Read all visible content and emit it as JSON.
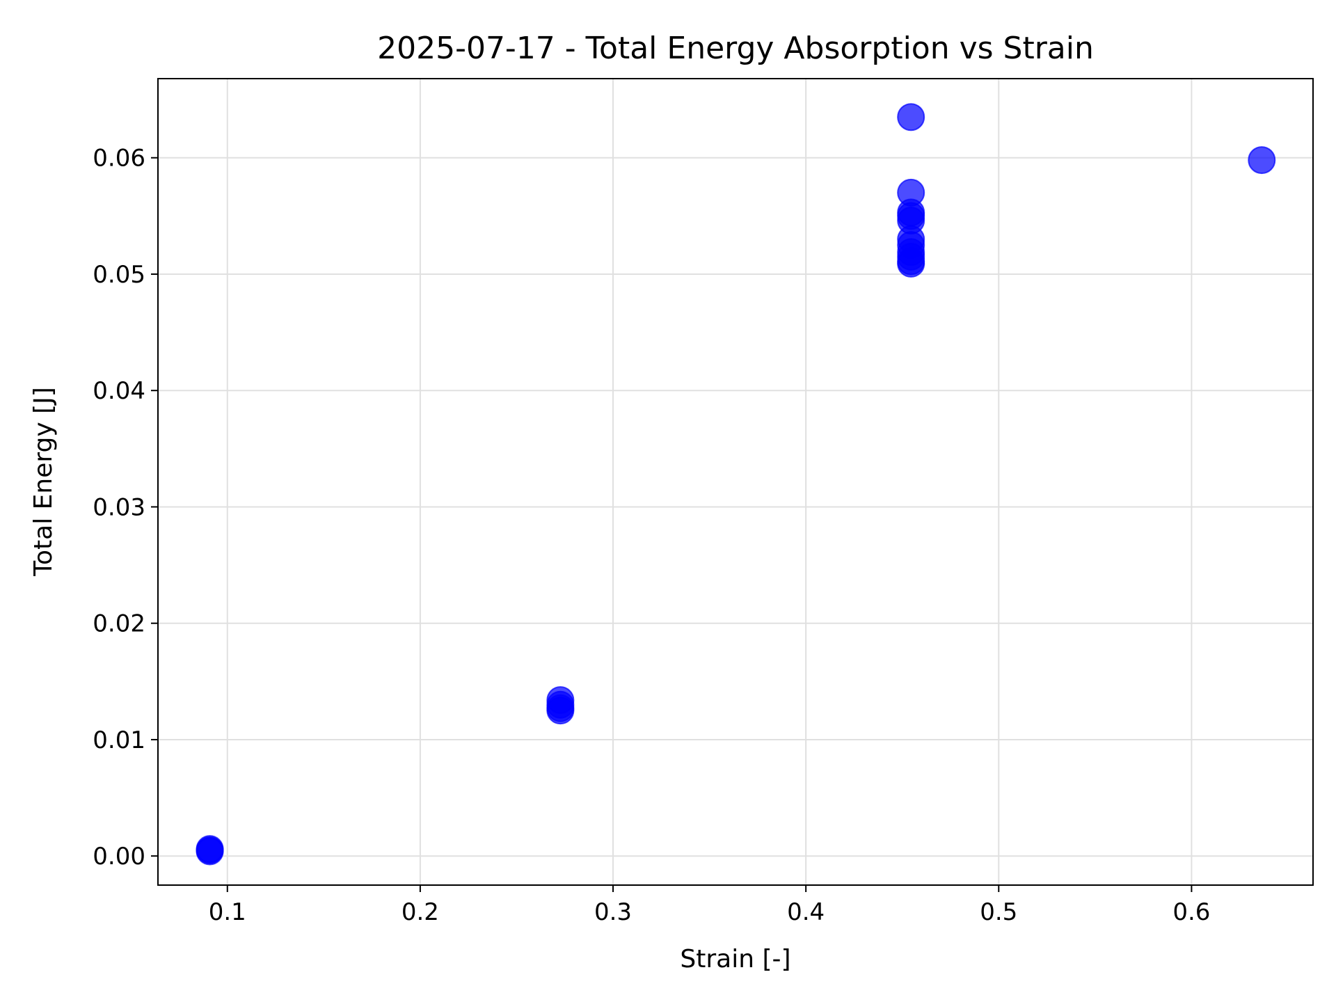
{
  "chart_data": {
    "type": "scatter",
    "title": "2025-07-17 - Total Energy Absorption vs Strain",
    "xlabel": "Strain [-]",
    "ylabel": "Total Energy [J]",
    "xlim": [
      0.064,
      0.663
    ],
    "ylim": [
      -0.0025,
      0.0668
    ],
    "xticks": [
      0.1,
      0.2,
      0.3,
      0.4,
      0.5,
      0.6
    ],
    "xtick_labels": [
      "0.1",
      "0.2",
      "0.3",
      "0.4",
      "0.5",
      "0.6"
    ],
    "yticks": [
      0.0,
      0.01,
      0.02,
      0.03,
      0.04,
      0.05,
      0.06
    ],
    "ytick_labels": [
      "0.00",
      "0.01",
      "0.02",
      "0.03",
      "0.04",
      "0.05",
      "0.06"
    ],
    "grid": true,
    "marker_color": "#0000ff",
    "marker_opacity": 0.7,
    "points": [
      {
        "x": 0.0909,
        "y": 0.0005
      },
      {
        "x": 0.0909,
        "y": 0.0006
      },
      {
        "x": 0.0909,
        "y": 0.0004
      },
      {
        "x": 0.2727,
        "y": 0.0125
      },
      {
        "x": 0.2727,
        "y": 0.0127
      },
      {
        "x": 0.2727,
        "y": 0.013
      },
      {
        "x": 0.2727,
        "y": 0.0134
      },
      {
        "x": 0.4545,
        "y": 0.0635
      },
      {
        "x": 0.4545,
        "y": 0.057
      },
      {
        "x": 0.4545,
        "y": 0.0553
      },
      {
        "x": 0.4545,
        "y": 0.055
      },
      {
        "x": 0.4545,
        "y": 0.0546
      },
      {
        "x": 0.4545,
        "y": 0.053
      },
      {
        "x": 0.4545,
        "y": 0.0525
      },
      {
        "x": 0.4545,
        "y": 0.0519
      },
      {
        "x": 0.4545,
        "y": 0.0515
      },
      {
        "x": 0.4545,
        "y": 0.0511
      },
      {
        "x": 0.4545,
        "y": 0.0509
      },
      {
        "x": 0.6364,
        "y": 0.0598
      }
    ]
  }
}
